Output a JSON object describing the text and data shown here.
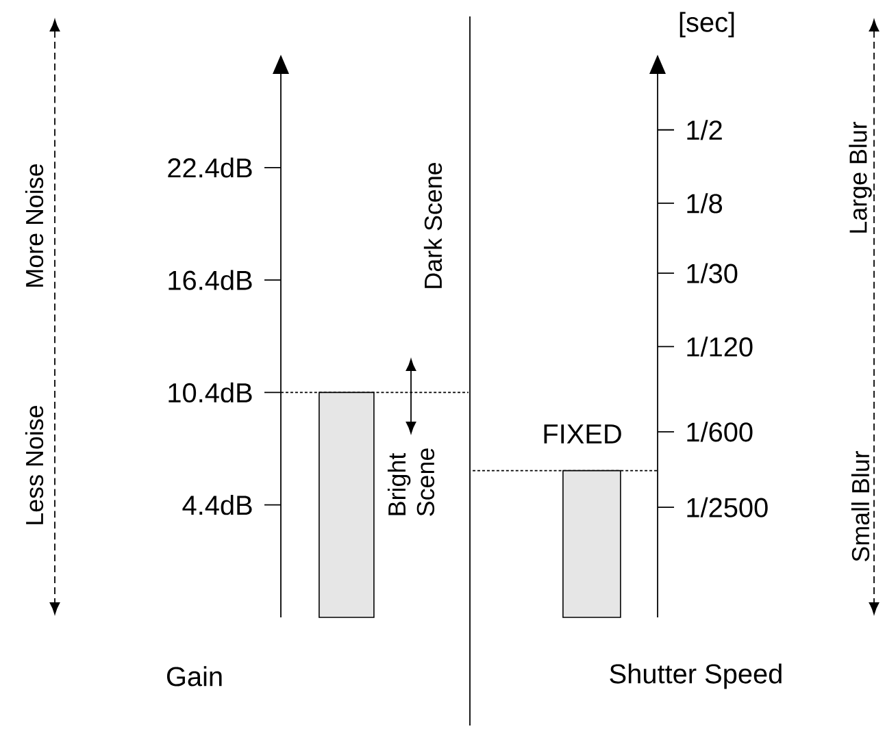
{
  "chart_data": [
    {
      "type": "bar",
      "categories": [
        null
      ],
      "values": [
        12
      ],
      "base": [
        -1.6
      ],
      "color": "#e6e6e6",
      "xlabel": "Gain",
      "ylim": [
        -1.6,
        27.4
      ],
      "yticks": [
        {
          "value": 4.4,
          "label": "4.4dB"
        },
        {
          "value": 10.4,
          "label": "10.4dB"
        },
        {
          "value": 16.4,
          "label": "16.4dB"
        },
        {
          "value": 22.4,
          "label": "22.4dB"
        }
      ],
      "ref_lines": [
        {
          "axis": "y",
          "value": 10.4,
          "line_style": "dashed"
        }
      ],
      "annotations": [
        "More Noise",
        "Less Noise",
        "Dark Scene",
        "Bright Scene"
      ],
      "tick_labels": "y"
    },
    {
      "type": "bar",
      "categories": [
        null
      ],
      "values": [
        0.0008
      ],
      "color": "#e6e6e6",
      "xlabel": "Shutter Speed",
      "ylabel": "[sec]",
      "log": "y",
      "ylim": [
        5e-05,
        1.44
      ],
      "yticks": [
        {
          "value": 0.0004,
          "label": "1/2500"
        },
        {
          "value": 0.001667,
          "label": "1/600"
        },
        {
          "value": 0.008333,
          "label": "1/120"
        },
        {
          "value": 0.03333,
          "label": "1/30"
        },
        {
          "value": 0.125,
          "label": "1/8"
        },
        {
          "value": 0.5,
          "label": "1/2"
        }
      ],
      "ref_lines": [
        {
          "axis": "y",
          "value": 0.0008,
          "line_style": "dashed"
        }
      ],
      "annotations": [
        "FIXED",
        "Large Blur",
        "Small Blur"
      ],
      "tick_labels": "y"
    }
  ]
}
